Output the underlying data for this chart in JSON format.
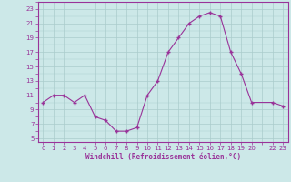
{
  "x": [
    0,
    1,
    2,
    3,
    4,
    5,
    6,
    7,
    8,
    9,
    10,
    11,
    12,
    13,
    14,
    15,
    16,
    17,
    18,
    19,
    20,
    22,
    23
  ],
  "y": [
    10,
    11,
    11,
    10,
    11,
    8,
    7.5,
    6,
    6,
    6.5,
    11,
    13,
    17,
    19,
    21,
    22,
    22.5,
    22,
    17,
    14,
    10,
    10,
    9.5
  ],
  "line_color": "#993399",
  "marker_color": "#993399",
  "bg_color": "#cce8e8",
  "grid_color": "#aacccc",
  "xlabel": "Windchill (Refroidissement éolien,°C)",
  "xlabel_color": "#993399",
  "yticks": [
    5,
    7,
    9,
    11,
    13,
    15,
    17,
    19,
    21,
    23
  ],
  "ylim": [
    4.5,
    24.0
  ],
  "xlim": [
    -0.5,
    23.5
  ],
  "tick_color": "#993399",
  "axis_color": "#993399",
  "tick_labelsize": 5.0,
  "xlabel_fontsize": 5.5
}
